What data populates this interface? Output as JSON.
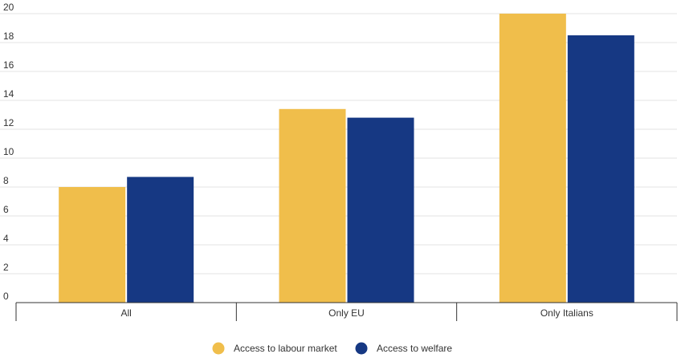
{
  "chart_data": {
    "type": "bar",
    "categories": [
      "All",
      "Only EU",
      "Only Italians"
    ],
    "series": [
      {
        "name": "Access to labour market",
        "values": [
          8.0,
          13.4,
          20.0
        ],
        "color": "#F0BE4B"
      },
      {
        "name": "Access to welfare",
        "values": [
          8.7,
          12.8,
          18.5
        ],
        "color": "#163883"
      }
    ],
    "yticks": [
      "0",
      "2",
      "4",
      "6",
      "8",
      "10",
      "12",
      "14",
      "16",
      "18",
      "20"
    ],
    "ylim": [
      0,
      20
    ],
    "grid": true,
    "legend_position": "bottom-center",
    "title": "",
    "xlabel": "",
    "ylabel": ""
  }
}
